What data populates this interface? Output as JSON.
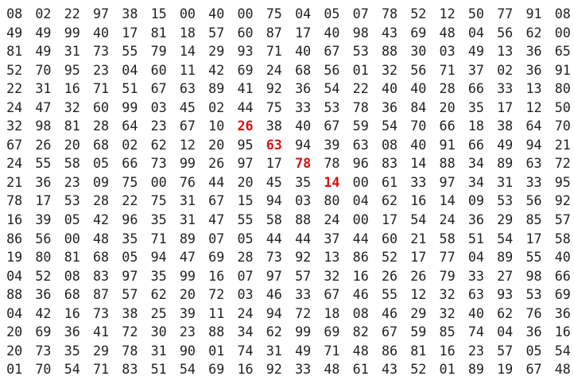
{
  "grid": [
    [
      "08",
      "02",
      "22",
      "97",
      "38",
      "15",
      "00",
      "40",
      "00",
      "75",
      "04",
      "05",
      "07",
      "78",
      "52",
      "12",
      "50",
      "77",
      "91",
      "08"
    ],
    [
      "49",
      "49",
      "99",
      "40",
      "17",
      "81",
      "18",
      "57",
      "60",
      "87",
      "17",
      "40",
      "98",
      "43",
      "69",
      "48",
      "04",
      "56",
      "62",
      "00"
    ],
    [
      "81",
      "49",
      "31",
      "73",
      "55",
      "79",
      "14",
      "29",
      "93",
      "71",
      "40",
      "67",
      "53",
      "88",
      "30",
      "03",
      "49",
      "13",
      "36",
      "65"
    ],
    [
      "52",
      "70",
      "95",
      "23",
      "04",
      "60",
      "11",
      "42",
      "69",
      "24",
      "68",
      "56",
      "01",
      "32",
      "56",
      "71",
      "37",
      "02",
      "36",
      "91"
    ],
    [
      "22",
      "31",
      "16",
      "71",
      "51",
      "67",
      "63",
      "89",
      "41",
      "92",
      "36",
      "54",
      "22",
      "40",
      "40",
      "28",
      "66",
      "33",
      "13",
      "80"
    ],
    [
      "24",
      "47",
      "32",
      "60",
      "99",
      "03",
      "45",
      "02",
      "44",
      "75",
      "33",
      "53",
      "78",
      "36",
      "84",
      "20",
      "35",
      "17",
      "12",
      "50"
    ],
    [
      "32",
      "98",
      "81",
      "28",
      "64",
      "23",
      "67",
      "10",
      "26",
      "38",
      "40",
      "67",
      "59",
      "54",
      "70",
      "66",
      "18",
      "38",
      "64",
      "70"
    ],
    [
      "67",
      "26",
      "20",
      "68",
      "02",
      "62",
      "12",
      "20",
      "95",
      "63",
      "94",
      "39",
      "63",
      "08",
      "40",
      "91",
      "66",
      "49",
      "94",
      "21"
    ],
    [
      "24",
      "55",
      "58",
      "05",
      "66",
      "73",
      "99",
      "26",
      "97",
      "17",
      "78",
      "78",
      "96",
      "83",
      "14",
      "88",
      "34",
      "89",
      "63",
      "72"
    ],
    [
      "21",
      "36",
      "23",
      "09",
      "75",
      "00",
      "76",
      "44",
      "20",
      "45",
      "35",
      "14",
      "00",
      "61",
      "33",
      "97",
      "34",
      "31",
      "33",
      "95"
    ],
    [
      "78",
      "17",
      "53",
      "28",
      "22",
      "75",
      "31",
      "67",
      "15",
      "94",
      "03",
      "80",
      "04",
      "62",
      "16",
      "14",
      "09",
      "53",
      "56",
      "92"
    ],
    [
      "16",
      "39",
      "05",
      "42",
      "96",
      "35",
      "31",
      "47",
      "55",
      "58",
      "88",
      "24",
      "00",
      "17",
      "54",
      "24",
      "36",
      "29",
      "85",
      "57"
    ],
    [
      "86",
      "56",
      "00",
      "48",
      "35",
      "71",
      "89",
      "07",
      "05",
      "44",
      "44",
      "37",
      "44",
      "60",
      "21",
      "58",
      "51",
      "54",
      "17",
      "58"
    ],
    [
      "19",
      "80",
      "81",
      "68",
      "05",
      "94",
      "47",
      "69",
      "28",
      "73",
      "92",
      "13",
      "86",
      "52",
      "17",
      "77",
      "04",
      "89",
      "55",
      "40"
    ],
    [
      "04",
      "52",
      "08",
      "83",
      "97",
      "35",
      "99",
      "16",
      "07",
      "97",
      "57",
      "32",
      "16",
      "26",
      "26",
      "79",
      "33",
      "27",
      "98",
      "66"
    ],
    [
      "88",
      "36",
      "68",
      "87",
      "57",
      "62",
      "20",
      "72",
      "03",
      "46",
      "33",
      "67",
      "46",
      "55",
      "12",
      "32",
      "63",
      "93",
      "53",
      "69"
    ],
    [
      "04",
      "42",
      "16",
      "73",
      "38",
      "25",
      "39",
      "11",
      "24",
      "94",
      "72",
      "18",
      "08",
      "46",
      "29",
      "32",
      "40",
      "62",
      "76",
      "36"
    ],
    [
      "20",
      "69",
      "36",
      "41",
      "72",
      "30",
      "23",
      "88",
      "34",
      "62",
      "99",
      "69",
      "82",
      "67",
      "59",
      "85",
      "74",
      "04",
      "36",
      "16"
    ],
    [
      "20",
      "73",
      "35",
      "29",
      "78",
      "31",
      "90",
      "01",
      "74",
      "31",
      "49",
      "71",
      "48",
      "86",
      "81",
      "16",
      "23",
      "57",
      "05",
      "54"
    ],
    [
      "01",
      "70",
      "54",
      "71",
      "83",
      "51",
      "54",
      "69",
      "16",
      "92",
      "33",
      "48",
      "61",
      "43",
      "52",
      "01",
      "89",
      "19",
      "67",
      "48"
    ]
  ],
  "highlights": [
    [
      6,
      8
    ],
    [
      7,
      9
    ],
    [
      8,
      10
    ],
    [
      9,
      11
    ]
  ],
  "colors": {
    "text": "#222222",
    "highlight": "#e01010",
    "background": "#ffffff"
  }
}
